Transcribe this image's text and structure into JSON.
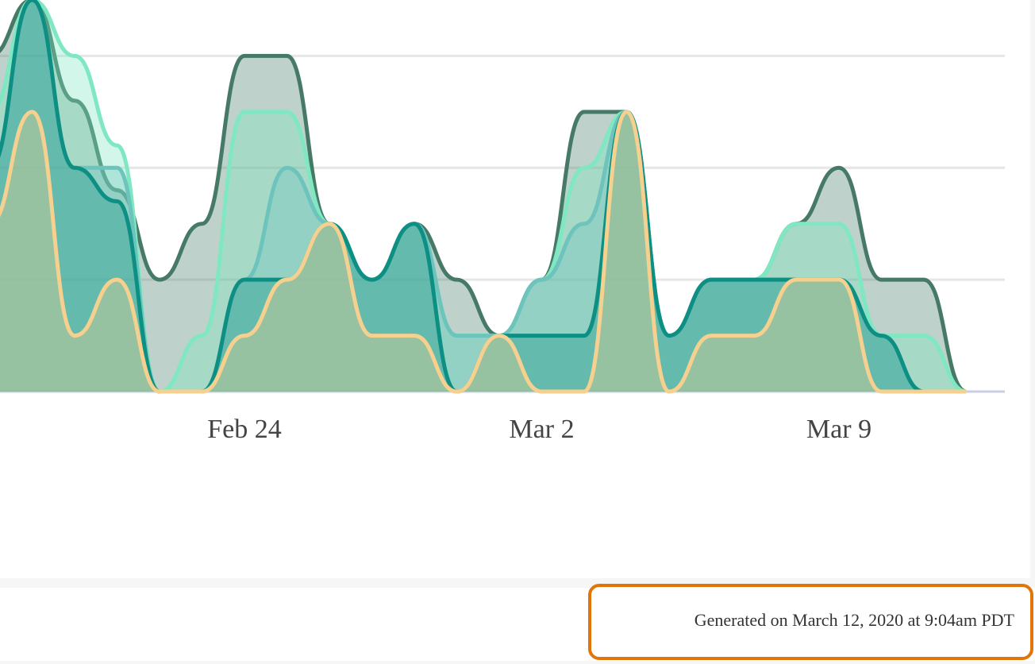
{
  "chart_data": {
    "type": "area",
    "categories": [
      null,
      null,
      null,
      null,
      null,
      null,
      "Feb 24",
      null,
      null,
      null,
      null,
      null,
      null,
      "Mar 2",
      null,
      null,
      null,
      null,
      null,
      null,
      "Mar 9",
      null,
      null,
      null
    ],
    "series": [
      {
        "color": "#467a66",
        "values": [
          3,
          3.5,
          2.6,
          1.8,
          1,
          1.5,
          3,
          3,
          1.5,
          1,
          1.5,
          1,
          0.5,
          1,
          2.5,
          2.5,
          0.5,
          1,
          1,
          1.5,
          2,
          1,
          1,
          0
        ]
      },
      {
        "color": "#7fe8c2",
        "values": [
          2.5,
          3.5,
          3,
          2.2,
          0,
          0.5,
          2.5,
          2.5,
          1.5,
          1,
          1.5,
          0.5,
          0.5,
          1,
          2,
          2.5,
          0.5,
          1,
          1,
          1.5,
          1.5,
          0.5,
          0.5,
          0
        ]
      },
      {
        "color": "#6cc4bc",
        "values": [
          2,
          3.5,
          2,
          2,
          0,
          0,
          1,
          2,
          1.5,
          1,
          1.5,
          0.5,
          0.5,
          1,
          1.5,
          2.5,
          0.5,
          1,
          1,
          1,
          1,
          0.5,
          0,
          0
        ]
      },
      {
        "color": "#0e8f84",
        "values": [
          2,
          3.5,
          2,
          1.7,
          0,
          0,
          1,
          1,
          1.5,
          1,
          1.5,
          0,
          0.5,
          0.5,
          0.5,
          2.5,
          0.5,
          1,
          1,
          1,
          1,
          0.5,
          0,
          0
        ]
      },
      {
        "color": "#f5d08e",
        "values": [
          1.5,
          2.5,
          0.5,
          1,
          0,
          0,
          0.5,
          1,
          1.5,
          0.5,
          0.5,
          0,
          0.5,
          0,
          0,
          2.5,
          0,
          0.5,
          0.5,
          1,
          1,
          0,
          0,
          0
        ]
      }
    ],
    "ylim": [
      0,
      3.5
    ],
    "yticks": [
      0,
      1,
      2,
      3
    ],
    "grid": true
  },
  "footer": {
    "text": "Generated on March 12, 2020 at 9:04am PDT"
  }
}
